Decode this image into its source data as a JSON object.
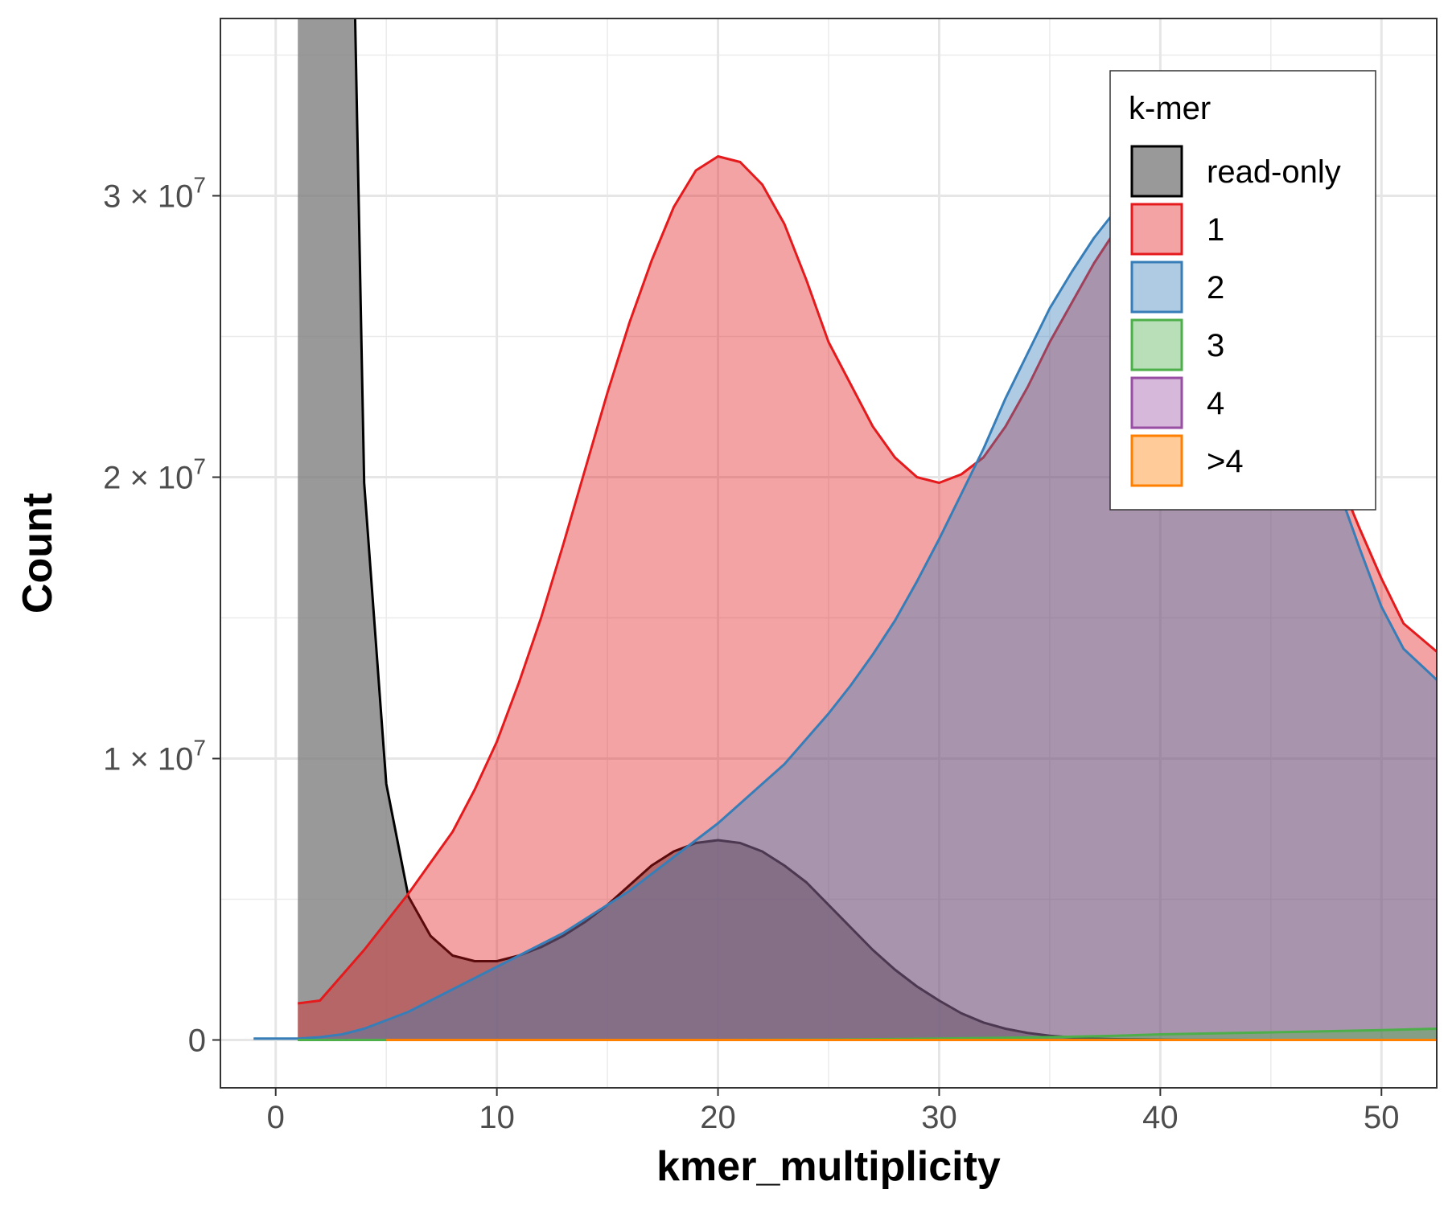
{
  "chart_data": {
    "type": "area",
    "xlabel": "kmer_multiplicity",
    "ylabel": "Count",
    "xlim": [
      -2.5,
      52.5
    ],
    "ylim": [
      -1700000,
      36300000
    ],
    "x_ticks": [
      0,
      10,
      20,
      30,
      40,
      50
    ],
    "y_ticks": [
      0,
      10000000,
      20000000,
      30000000
    ],
    "y_tick_labels": [
      {
        "mantissa": "0",
        "times": "",
        "base": "",
        "exp": ""
      },
      {
        "mantissa": "1",
        "times": "×",
        "base": "10",
        "exp": "7"
      },
      {
        "mantissa": "2",
        "times": "×",
        "base": "10",
        "exp": "7"
      },
      {
        "mantissa": "3",
        "times": "×",
        "base": "10",
        "exp": "7"
      }
    ],
    "grid": true,
    "legend": {
      "title": "k-mer",
      "position": "top-right",
      "entries": [
        "read-only",
        "1",
        "2",
        "3",
        "4",
        ">4"
      ]
    },
    "series": [
      {
        "name": "read-only",
        "stroke": "#000000",
        "fill": "#7f7f7f",
        "fill_opacity": 0.8,
        "x": [
          1,
          3.5,
          4,
          5,
          6,
          7,
          8,
          9,
          10,
          11,
          12,
          13,
          14,
          15,
          16,
          17,
          18,
          19,
          20,
          21,
          22,
          23,
          24,
          25,
          26,
          27,
          28,
          29,
          30,
          31,
          32,
          33,
          34,
          35,
          36,
          37,
          38,
          39,
          40,
          41,
          42,
          43,
          44,
          45,
          46,
          47,
          48,
          49,
          50,
          51,
          52.5
        ],
        "y": [
          60000000,
          40000000,
          19800000,
          9100000,
          5100000,
          3700000,
          3000000,
          2800000,
          2800000,
          3000000,
          3300000,
          3700000,
          4200000,
          4800000,
          5500000,
          6200000,
          6700000,
          7000000,
          7100000,
          7000000,
          6700000,
          6200000,
          5600000,
          4800000,
          4000000,
          3200000,
          2500000,
          1900000,
          1400000,
          950000,
          620000,
          400000,
          250000,
          150000,
          90000,
          50000,
          30000,
          20000,
          10000,
          5000,
          3000,
          2000,
          1000,
          500,
          300,
          200,
          100,
          50,
          30,
          20,
          10
        ]
      },
      {
        "name": "1",
        "stroke": "#e41a1c",
        "fill": "#e41a1c",
        "fill_opacity": 0.4,
        "x": [
          1,
          2,
          3,
          4,
          5,
          6,
          7,
          8,
          9,
          10,
          11,
          12,
          13,
          14,
          15,
          16,
          17,
          18,
          19,
          20,
          21,
          22,
          23,
          24,
          25,
          26,
          27,
          28,
          29,
          30,
          31,
          32,
          33,
          34,
          35,
          36,
          37,
          38,
          39,
          40,
          41,
          42,
          43,
          44,
          45,
          46,
          47,
          48,
          49,
          50,
          51,
          52.5
        ],
        "y": [
          1300000,
          1400000,
          2300000,
          3200000,
          4200000,
          5200000,
          6300000,
          7400000,
          8900000,
          10600000,
          12700000,
          15000000,
          17600000,
          20300000,
          23000000,
          25500000,
          27700000,
          29600000,
          30900000,
          31400000,
          31200000,
          30400000,
          29000000,
          27000000,
          24800000,
          23300000,
          21800000,
          20700000,
          20000000,
          19800000,
          20100000,
          20700000,
          21800000,
          23200000,
          24800000,
          26200000,
          27600000,
          28800000,
          29600000,
          30000000,
          30000000,
          29600000,
          28700000,
          27500000,
          25900000,
          24000000,
          22100000,
          20100000,
          18200000,
          16400000,
          14800000,
          13800000
        ]
      },
      {
        "name": "2",
        "stroke": "#377eb8",
        "fill": "#377eb8",
        "fill_opacity": 0.4,
        "x": [
          -1,
          1,
          2,
          3,
          4,
          5,
          6,
          7,
          8,
          9,
          10,
          11,
          12,
          13,
          14,
          15,
          16,
          17,
          18,
          19,
          20,
          21,
          22,
          23,
          24,
          25,
          26,
          27,
          28,
          29,
          30,
          31,
          32,
          33,
          34,
          35,
          36,
          37,
          38,
          39,
          40,
          41,
          42,
          43,
          44,
          45,
          46,
          47,
          48,
          49,
          50,
          51,
          52.5
        ],
        "y": [
          50000,
          50000,
          100000,
          200000,
          400000,
          700000,
          1000000,
          1400000,
          1800000,
          2200000,
          2600000,
          3000000,
          3400000,
          3800000,
          4300000,
          4800000,
          5300000,
          5900000,
          6500000,
          7100000,
          7700000,
          8400000,
          9100000,
          9800000,
          10700000,
          11600000,
          12600000,
          13700000,
          14900000,
          16300000,
          17800000,
          19400000,
          21000000,
          22800000,
          24400000,
          26000000,
          27300000,
          28500000,
          29500000,
          30200000,
          30500000,
          30400000,
          30000000,
          29100000,
          27800000,
          26100000,
          24000000,
          21900000,
          19700000,
          17500000,
          15400000,
          13900000,
          12800000
        ]
      },
      {
        "name": "4",
        "stroke": "#984ea3",
        "fill": "#984ea3",
        "fill_opacity": 0.4,
        "x": [
          1,
          5,
          10,
          15,
          20,
          25,
          30,
          35,
          38,
          40,
          45,
          50,
          52.5
        ],
        "y": [
          0,
          0,
          0,
          0,
          0,
          0,
          0,
          0,
          0,
          0,
          0,
          0,
          0
        ]
      },
      {
        "name": "3",
        "stroke": "#4daf4a",
        "fill": "#4daf4a",
        "fill_opacity": 0.4,
        "x": [
          1,
          5,
          10,
          15,
          20,
          25,
          30,
          35,
          38,
          40,
          45,
          50,
          52.5
        ],
        "y": [
          0,
          0,
          0,
          0,
          0,
          10000,
          50000,
          100000,
          150000,
          200000,
          270000,
          350000,
          400000
        ]
      },
      {
        "name": ">4",
        "stroke": "#ff7f00",
        "fill": "#ff7f00",
        "fill_opacity": 0.4,
        "x": [
          5,
          10,
          20,
          30,
          40,
          50,
          52.5
        ],
        "y": [
          0,
          0,
          0,
          0,
          0,
          0,
          0
        ]
      }
    ]
  }
}
